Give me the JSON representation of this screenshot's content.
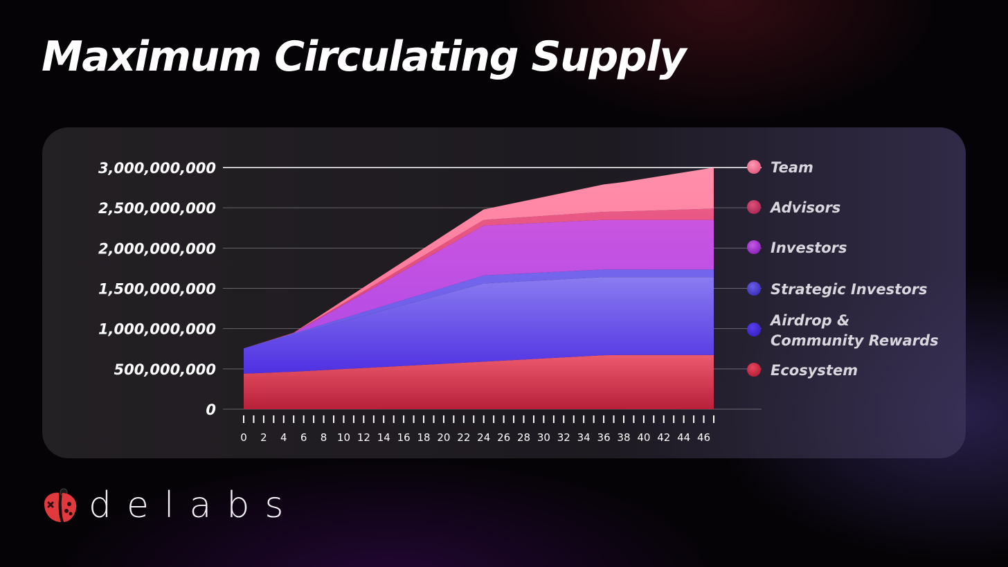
{
  "title": "Maximum Circulating Supply",
  "brand": {
    "name": "delabs",
    "icon": "ladybug-gamepad-logo"
  },
  "colors": {
    "team": "#ff8aa6",
    "advisors": "#e64f80",
    "investors": "#c24fe0",
    "strategic_investors": "#6f5ce8",
    "airdrop": "#5a3ee6",
    "ecosystem": "#d63a55"
  },
  "chart_data": {
    "type": "area",
    "stacked": true,
    "y_tick_labels": [
      "0",
      "500,000,000",
      "1,000,000,000",
      "1,500,000,000",
      "2,000,000,000",
      "2,500,000,000",
      "3,000,000,000"
    ],
    "y_ticks": [
      0,
      500000000,
      1000000000,
      1500000000,
      2000000000,
      2500000000,
      3000000000
    ],
    "ylim": [
      0,
      3000000000
    ],
    "x_tick_labels": [
      "0",
      "2",
      "4",
      "6",
      "8",
      "10",
      "12",
      "14",
      "16",
      "18",
      "20",
      "22",
      "24",
      "26",
      "28",
      "30",
      "32",
      "34",
      "36",
      "38",
      "40",
      "42",
      "44",
      "46"
    ],
    "xlim": [
      0,
      47
    ],
    "grid": true,
    "legend_position": "right",
    "legend": [
      "Team",
      "Advisors",
      "Investors",
      "Strategic Investors",
      "Airdrop & Community Rewards",
      "Ecosystem"
    ],
    "x": [
      0,
      5,
      24,
      36,
      38,
      47
    ],
    "series": [
      {
        "name": "Ecosystem",
        "values": [
          440000000,
          465000000,
          590000000,
          670000000,
          672000000,
          672000000
        ]
      },
      {
        "name": "Airdrop & Community Rewards",
        "values": [
          315000000,
          460000000,
          970000000,
          970000000,
          968000000,
          968000000
        ]
      },
      {
        "name": "Strategic Investors",
        "values": [
          0,
          15000000,
          100000000,
          95000000,
          95000000,
          95000000
        ]
      },
      {
        "name": "Investors",
        "values": [
          0,
          5000000,
          620000000,
          615000000,
          615000000,
          615000000
        ]
      },
      {
        "name": "Advisors",
        "values": [
          0,
          3000000,
          70000000,
          100000000,
          105000000,
          140000000
        ]
      },
      {
        "name": "Team",
        "values": [
          0,
          2000000,
          130000000,
          340000000,
          365000000,
          510000000
        ]
      }
    ]
  }
}
